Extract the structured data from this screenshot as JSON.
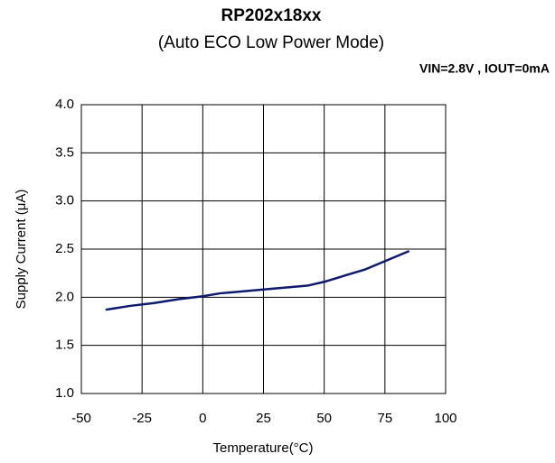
{
  "chart_data": {
    "type": "line",
    "title": "RP202x18xx",
    "subtitle": "(Auto ECO Low Power Mode)",
    "annotation": "VIN=2.8V , IOUT=0mA",
    "x_label": "Temperature(°C)",
    "y_label": "Supply Current (μA)",
    "x": [
      -40,
      -30,
      -20,
      -10,
      0,
      7,
      25,
      43,
      50,
      67,
      85
    ],
    "series": [
      {
        "name": "Supply Current",
        "color": "#0d1a6e",
        "values": [
          1.87,
          1.91,
          1.94,
          1.98,
          2.01,
          2.04,
          2.08,
          2.12,
          2.16,
          2.29,
          2.48
        ]
      }
    ],
    "xlim": [
      -50,
      100
    ],
    "xticks": [
      -50,
      -25,
      0,
      25,
      50,
      75,
      100
    ],
    "ylim": [
      1,
      4
    ],
    "yticks": [
      {
        "value": 1,
        "label": "1.0"
      },
      1.5,
      {
        "value": 2,
        "label": "2.0"
      },
      2.5,
      {
        "value": 3,
        "label": "3.0"
      },
      3.5,
      {
        "value": 4,
        "label": "4.0"
      }
    ],
    "grid": true
  }
}
